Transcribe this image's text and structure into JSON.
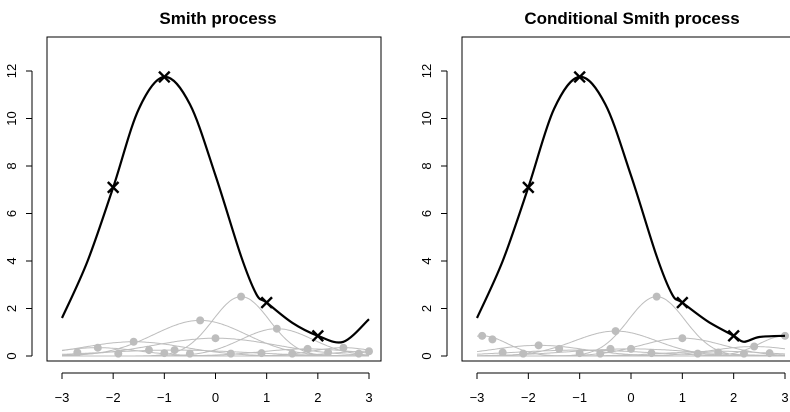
{
  "chart_data": [
    {
      "type": "line",
      "title": "Smith process",
      "xlabel": "",
      "ylabel": "",
      "xlim": [
        -3,
        3
      ],
      "ylim": [
        0,
        13.2
      ],
      "x_ticks": [
        -3,
        -2,
        -1,
        0,
        1,
        2,
        3
      ],
      "y_ticks": [
        0,
        2,
        4,
        6,
        8,
        10,
        12
      ],
      "grid": false,
      "colors": {
        "main": "#000000",
        "background": "#bdbdbd"
      },
      "max_curve": {
        "x": [
          -3.0,
          -2.5,
          -2.0,
          -1.5,
          -1.0,
          -0.5,
          0.0,
          0.5,
          0.8,
          1.0,
          1.5,
          2.0,
          2.5,
          3.0
        ],
        "y": [
          1.6,
          4.0,
          7.1,
          10.4,
          11.75,
          10.6,
          7.6,
          4.2,
          2.6,
          2.25,
          1.4,
          0.85,
          0.6,
          1.55
        ]
      },
      "markers": [
        {
          "x": -2,
          "y": 7.1
        },
        {
          "x": -1,
          "y": 11.75
        },
        {
          "x": 1,
          "y": 2.25
        },
        {
          "x": 2,
          "y": 0.85
        }
      ],
      "background_curves": [
        {
          "center": 0.5,
          "height": 2.5,
          "width": 0.55
        },
        {
          "center": 1.2,
          "height": 1.15,
          "width": 0.7
        },
        {
          "center": -0.3,
          "height": 1.5,
          "width": 0.9
        },
        {
          "center": -1.6,
          "height": 0.6,
          "width": 1.0
        },
        {
          "center": 0.0,
          "height": 0.75,
          "width": 1.2
        },
        {
          "center": 2.5,
          "height": 0.35,
          "width": 0.6
        },
        {
          "center": -2.3,
          "height": 0.35,
          "width": 0.8
        },
        {
          "center": 1.8,
          "height": 0.3,
          "width": 0.9
        },
        {
          "center": -0.8,
          "height": 0.25,
          "width": 1.4
        },
        {
          "center": 3.0,
          "height": 0.2,
          "width": 0.7
        }
      ],
      "background_points": [
        {
          "x": 0.5,
          "y": 2.5
        },
        {
          "x": -0.3,
          "y": 1.5
        },
        {
          "x": 1.2,
          "y": 1.15
        },
        {
          "x": 0.0,
          "y": 0.75
        },
        {
          "x": -1.6,
          "y": 0.6
        },
        {
          "x": -2.3,
          "y": 0.35
        },
        {
          "x": 2.5,
          "y": 0.35
        },
        {
          "x": 1.8,
          "y": 0.3
        },
        {
          "x": -1.3,
          "y": 0.25
        },
        {
          "x": -0.8,
          "y": 0.25
        },
        {
          "x": 3.0,
          "y": 0.2
        },
        {
          "x": -2.7,
          "y": 0.15
        },
        {
          "x": -1.9,
          "y": 0.1
        },
        {
          "x": -1.0,
          "y": 0.12
        },
        {
          "x": -0.5,
          "y": 0.1
        },
        {
          "x": 0.3,
          "y": 0.1
        },
        {
          "x": 0.9,
          "y": 0.12
        },
        {
          "x": 1.5,
          "y": 0.1
        },
        {
          "x": 2.2,
          "y": 0.15
        },
        {
          "x": 2.8,
          "y": 0.1
        }
      ]
    },
    {
      "type": "line",
      "title": "Conditional Smith process",
      "xlabel": "",
      "ylabel": "",
      "xlim": [
        -3,
        3
      ],
      "ylim": [
        0,
        13.2
      ],
      "x_ticks": [
        -3,
        -2,
        -1,
        0,
        1,
        2,
        3
      ],
      "y_ticks": [
        0,
        2,
        4,
        6,
        8,
        10,
        12
      ],
      "grid": false,
      "colors": {
        "main": "#000000",
        "background": "#bdbdbd"
      },
      "max_curve": {
        "x": [
          -3.0,
          -2.5,
          -2.0,
          -1.5,
          -1.0,
          -0.5,
          0.0,
          0.5,
          0.8,
          1.0,
          1.5,
          2.0,
          2.2,
          2.5,
          3.0
        ],
        "y": [
          1.6,
          4.0,
          7.1,
          10.4,
          11.75,
          10.6,
          7.6,
          4.2,
          2.6,
          2.25,
          1.45,
          0.85,
          0.6,
          0.8,
          0.85
        ]
      },
      "markers": [
        {
          "x": -2,
          "y": 7.1
        },
        {
          "x": -1,
          "y": 11.75
        },
        {
          "x": 1,
          "y": 2.25
        },
        {
          "x": 2,
          "y": 0.85
        }
      ],
      "background_curves": [
        {
          "center": 0.5,
          "height": 2.5,
          "width": 0.55
        },
        {
          "center": -0.3,
          "height": 1.05,
          "width": 0.8
        },
        {
          "center": 1.0,
          "height": 0.75,
          "width": 0.8
        },
        {
          "center": -2.9,
          "height": 0.85,
          "width": 0.5
        },
        {
          "center": -1.8,
          "height": 0.45,
          "width": 0.9
        },
        {
          "center": 3.0,
          "height": 0.85,
          "width": 0.5
        },
        {
          "center": 2.4,
          "height": 0.4,
          "width": 0.8
        },
        {
          "center": 0.0,
          "height": 0.3,
          "width": 1.2
        },
        {
          "center": -1.0,
          "height": 0.25,
          "width": 1.3
        },
        {
          "center": 1.7,
          "height": 0.2,
          "width": 1.0
        }
      ],
      "background_points": [
        {
          "x": 0.5,
          "y": 2.5
        },
        {
          "x": -0.3,
          "y": 1.05
        },
        {
          "x": 1.0,
          "y": 0.75
        },
        {
          "x": -2.9,
          "y": 0.85
        },
        {
          "x": -2.7,
          "y": 0.7
        },
        {
          "x": 3.0,
          "y": 0.85
        },
        {
          "x": -1.8,
          "y": 0.45
        },
        {
          "x": 2.4,
          "y": 0.4
        },
        {
          "x": -1.4,
          "y": 0.3
        },
        {
          "x": -0.4,
          "y": 0.3
        },
        {
          "x": 0.0,
          "y": 0.3
        },
        {
          "x": -2.5,
          "y": 0.15
        },
        {
          "x": -2.1,
          "y": 0.1
        },
        {
          "x": -1.0,
          "y": 0.12
        },
        {
          "x": -0.6,
          "y": 0.1
        },
        {
          "x": 0.4,
          "y": 0.12
        },
        {
          "x": 1.3,
          "y": 0.1
        },
        {
          "x": 1.7,
          "y": 0.15
        },
        {
          "x": 2.2,
          "y": 0.1
        },
        {
          "x": 2.7,
          "y": 0.12
        }
      ]
    }
  ]
}
